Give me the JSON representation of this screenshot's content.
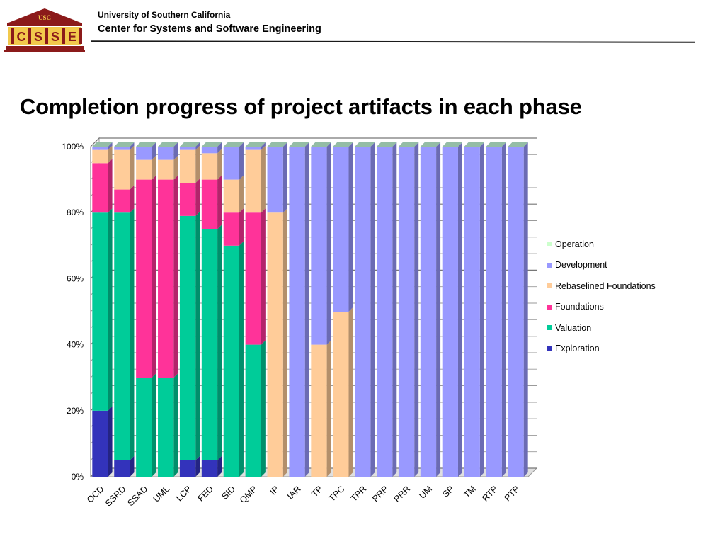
{
  "header": {
    "logo_top": "USC",
    "logo_letters": [
      "C",
      "S",
      "S",
      "E"
    ],
    "org_line1": "University of Southern California",
    "org_line2": "Center for Systems and Software Engineering"
  },
  "slide_title": "Completion progress of project artifacts in each phase",
  "chart_data": {
    "type": "bar",
    "stacked": true,
    "categories": [
      "OCD",
      "SSRD",
      "SSAD",
      "UML",
      "LCP",
      "FED",
      "SID",
      "QMP",
      "IP",
      "IAR",
      "TP",
      "TPC",
      "TPR",
      "PRP",
      "PRR",
      "UM",
      "SP",
      "TM",
      "RTP",
      "PTP"
    ],
    "series": [
      {
        "name": "Exploration",
        "color": "#3333bb",
        "values": [
          20,
          5,
          0,
          0,
          5,
          5,
          0,
          0,
          0,
          0,
          0,
          0,
          0,
          0,
          0,
          0,
          0,
          0,
          0,
          0
        ]
      },
      {
        "name": "Valuation",
        "color": "#00cc99",
        "values": [
          60,
          75,
          30,
          30,
          74,
          70,
          70,
          40,
          0,
          0,
          0,
          0,
          0,
          0,
          0,
          0,
          0,
          0,
          0,
          0
        ]
      },
      {
        "name": "Foundations",
        "color": "#ff3399",
        "values": [
          15,
          7,
          60,
          60,
          10,
          15,
          10,
          40,
          0,
          0,
          0,
          0,
          0,
          0,
          0,
          0,
          0,
          0,
          0,
          0
        ]
      },
      {
        "name": "Rebaselined Foundations",
        "color": "#ffcc99",
        "values": [
          4,
          12,
          6,
          6,
          10,
          8,
          10,
          19,
          80,
          0,
          40,
          50,
          0,
          0,
          0,
          0,
          0,
          0,
          0,
          0
        ]
      },
      {
        "name": "Development",
        "color": "#9999ff",
        "values": [
          1,
          1,
          4,
          4,
          1,
          2,
          10,
          1,
          20,
          100,
          60,
          50,
          100,
          100,
          100,
          100,
          100,
          100,
          100,
          100
        ]
      },
      {
        "name": "Operation",
        "color": "#ccffcc",
        "values": [
          0,
          0,
          0,
          0,
          0,
          0,
          0,
          0,
          0,
          0,
          0,
          0,
          0,
          0,
          0,
          0,
          0,
          0,
          0,
          0
        ]
      }
    ],
    "y_ticks": [
      "0%",
      "20%",
      "40%",
      "60%",
      "80%",
      "100%"
    ],
    "ylim": [
      0,
      100
    ],
    "grid": true,
    "legend_position": "right",
    "xlabel": "",
    "ylabel": ""
  }
}
